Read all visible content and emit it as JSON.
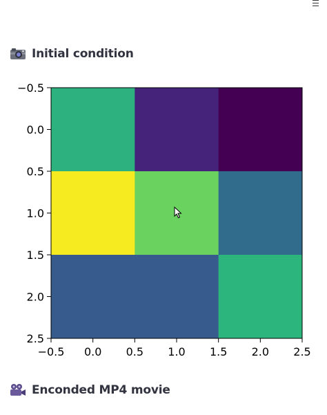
{
  "headers": {
    "initial": {
      "icon": "camera-icon",
      "label": "Initial condition"
    },
    "movie": {
      "icon": "movie-camera-icon",
      "label": "Enconded MP4 movie"
    }
  },
  "chart_data": {
    "type": "heatmap",
    "colormap": "viridis",
    "rows": 3,
    "cols": 3,
    "values": [
      [
        0.63,
        0.12,
        0.0
      ],
      [
        1.0,
        0.78,
        0.35
      ],
      [
        0.3,
        0.3,
        0.65
      ]
    ],
    "colors": [
      [
        "#2db17e",
        "#46237a",
        "#440154"
      ],
      [
        "#f6eb21",
        "#6ad360",
        "#316c8d"
      ],
      [
        "#365b8c",
        "#365b8c",
        "#2cb67e"
      ]
    ],
    "xticks": [
      "−0.5",
      "0.0",
      "0.5",
      "1.0",
      "1.5",
      "2.0",
      "2.5"
    ],
    "yticks": [
      "−0.5",
      "0.0",
      "0.5",
      "1.0",
      "1.5",
      "2.0",
      "2.5"
    ],
    "xlim": [
      -0.5,
      2.5
    ],
    "ylim": [
      2.5,
      -0.5
    ]
  }
}
